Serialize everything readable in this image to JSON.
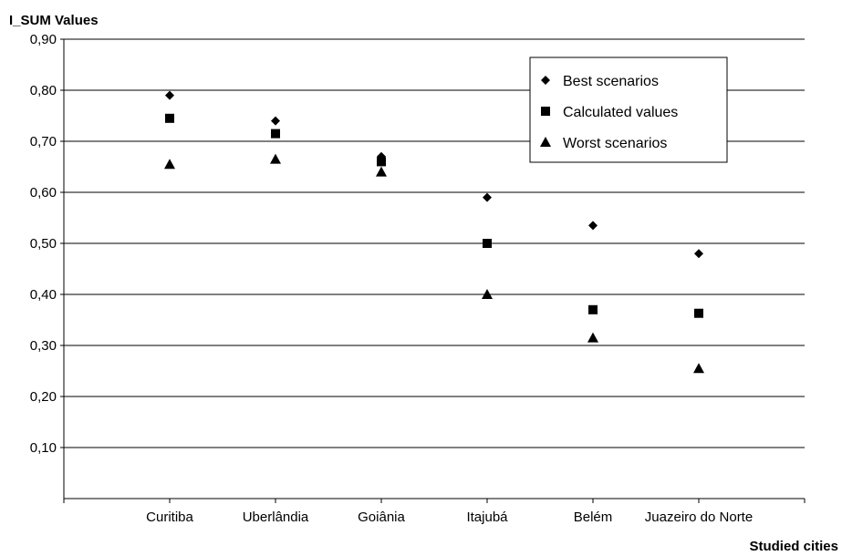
{
  "chart_data": {
    "type": "scatter",
    "ylabel": "I_SUM Values",
    "xlabel": "Studied cities",
    "categories": [
      "Curitiba",
      "Uberlândia",
      "Goiânia",
      "Itajubá",
      "Belém",
      "Juazeiro do Norte"
    ],
    "ylim": [
      0,
      0.9
    ],
    "y_ticks": [
      "0,10",
      "0,20",
      "0,30",
      "0,40",
      "0,50",
      "0,60",
      "0,70",
      "0,80",
      "0,90"
    ],
    "grid": "horizontal",
    "legend_position": "top-right",
    "series": [
      {
        "name": "Best scenarios",
        "marker": "diamond",
        "values": [
          0.79,
          0.74,
          0.67,
          0.59,
          0.535,
          0.48
        ]
      },
      {
        "name": "Calculated values",
        "marker": "square",
        "values": [
          0.745,
          0.715,
          0.66,
          0.5,
          0.37,
          0.363
        ]
      },
      {
        "name": "Worst scenarios",
        "marker": "triangle",
        "values": [
          0.655,
          0.665,
          0.64,
          0.4,
          0.315,
          0.255
        ]
      }
    ],
    "color": "#000000"
  }
}
